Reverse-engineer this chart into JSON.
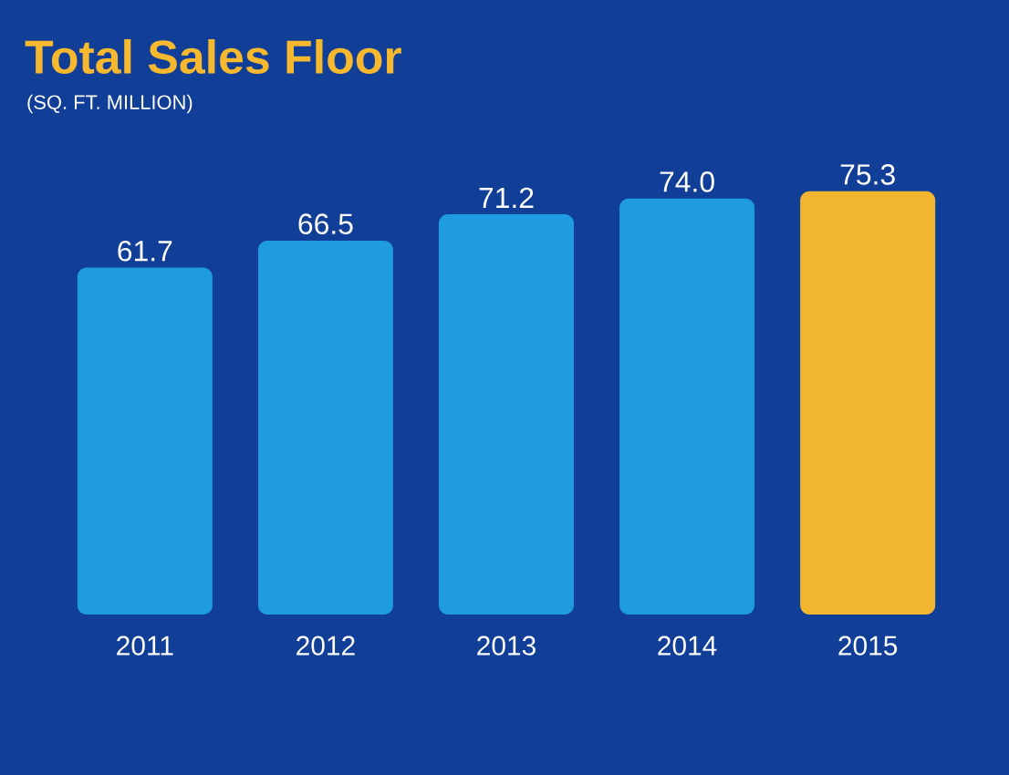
{
  "chart_data": {
    "type": "bar",
    "title": "Total Sales Floor",
    "subtitle": "(SQ. FT. MILLION)",
    "categories": [
      "2011",
      "2012",
      "2013",
      "2014",
      "2015"
    ],
    "values": [
      61.7,
      66.5,
      71.2,
      74.0,
      75.3
    ],
    "value_labels": [
      "61.7",
      "66.5",
      "71.2",
      "74.0",
      "75.3"
    ],
    "colors": [
      "#1f9be0",
      "#1f9be0",
      "#1f9be0",
      "#1f9be0",
      "#f2b530"
    ]
  }
}
